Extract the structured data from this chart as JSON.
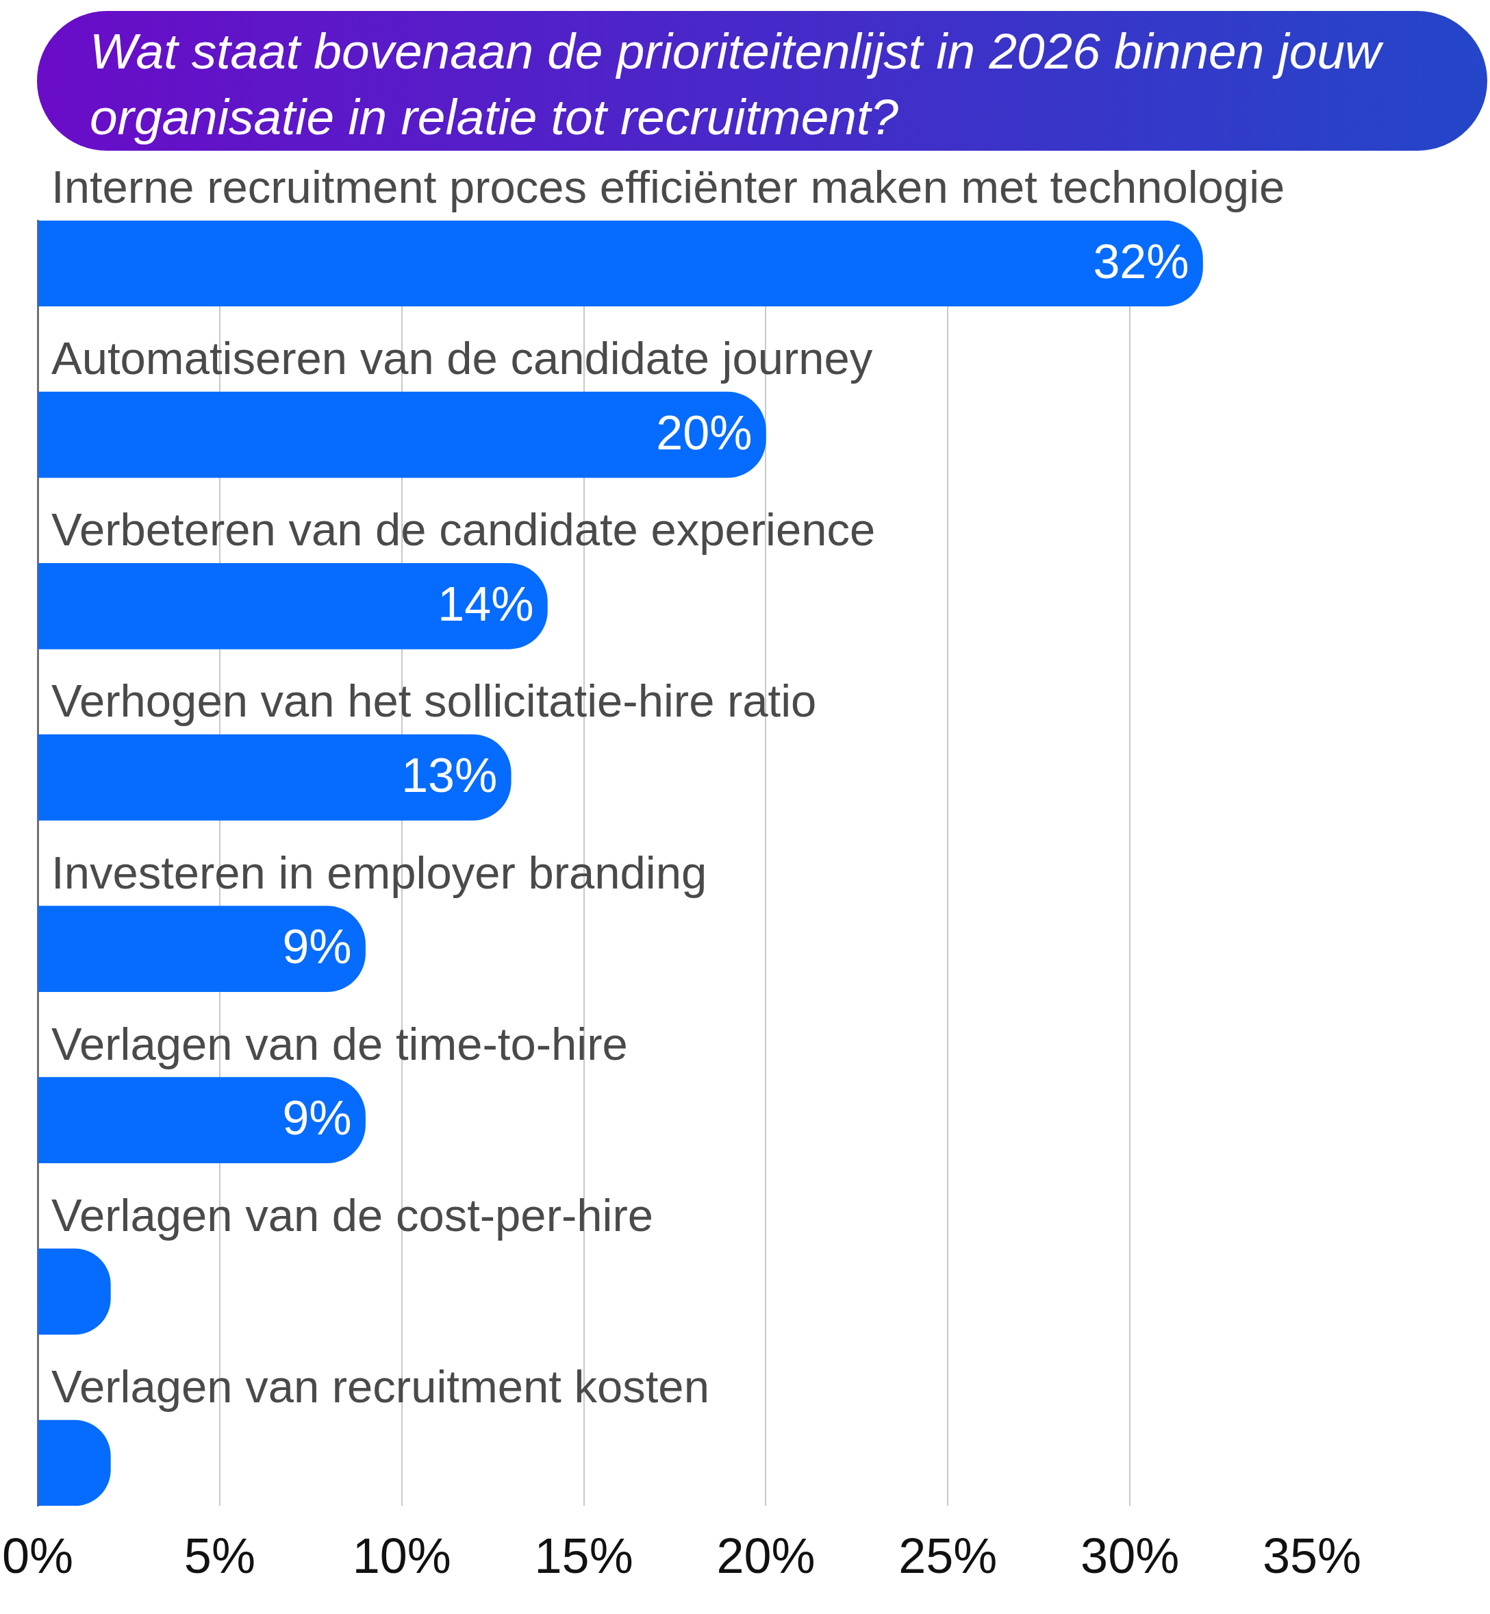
{
  "chart_data": {
    "type": "bar",
    "orientation": "horizontal",
    "title": "Wat staat bovenaan de prioriteitenlijst in 2026 binnen jouw organisatie in relatie tot recruitment?",
    "categories": [
      "Interne recruitment proces efficiënter maken met technologie",
      "Automatiseren van de candidate journey",
      "Verbeteren van de candidate experience",
      "Verhogen van het sollicitatie-hire ratio",
      "Investeren in employer branding",
      "Verlagen van de time-to-hire",
      "Verlagen van de cost-per-hire",
      "Verlagen van recruitment kosten"
    ],
    "values": [
      32,
      20,
      14,
      13,
      9,
      9,
      2,
      2
    ],
    "color": "#066bff",
    "value_labels": [
      "32%",
      "20%",
      "14%",
      "13%",
      "9%",
      "9%",
      null,
      null
    ],
    "xlim": [
      0,
      35
    ],
    "xticks": [
      {
        "value": 0,
        "label": "0%"
      },
      {
        "value": 5,
        "label": "5%"
      },
      {
        "value": 10,
        "label": "10%"
      },
      {
        "value": 15,
        "label": "15%"
      },
      {
        "value": 20,
        "label": "20%"
      },
      {
        "value": 25,
        "label": "25%"
      },
      {
        "value": 30,
        "label": "30%"
      },
      {
        "value": 35,
        "label": "35%"
      }
    ],
    "grid": "x"
  }
}
